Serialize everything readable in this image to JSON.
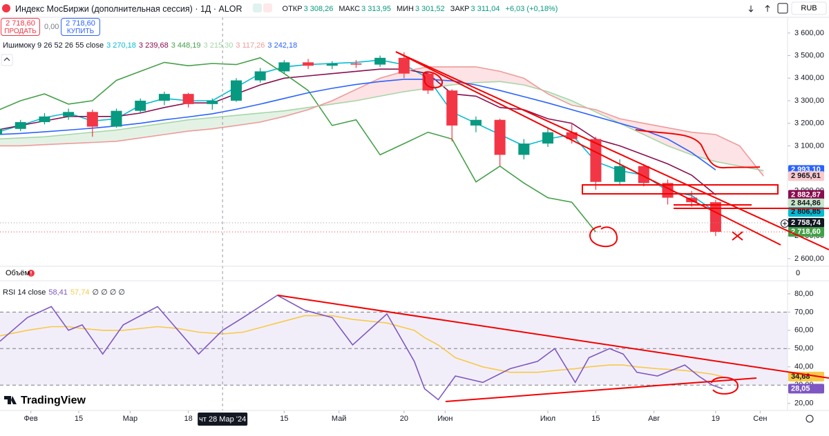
{
  "header": {
    "symbol": "Индекс МосБиржи (дополнительная сессия) · 1Д · ALOR",
    "ohlc": [
      {
        "label": "ОТКР",
        "value": "3 308,26"
      },
      {
        "label": "МАКС",
        "value": "3 313,95"
      },
      {
        "label": "МИН",
        "value": "3 301,52"
      },
      {
        "label": "ЗАКР",
        "value": "3 311,04"
      }
    ],
    "change": "+6,03 (+0,18%)",
    "currency": "RUB",
    "sell": {
      "price": "2 718,60",
      "label": "ПРОДАТЬ"
    },
    "spread": "0,00",
    "buy": {
      "price": "2 718,60",
      "label": "КУПИТЬ"
    },
    "volume": {
      "title": "Объём",
      "axis_label": "0"
    },
    "brand": "TradingView"
  },
  "crosshair": {
    "value": "2024-03-28",
    "label": "чт 28 Мар '24"
  },
  "chart_data": [
    {
      "type": "candlestick",
      "title": "Ишимоку 9 26 52 26 55 close",
      "x": [
        "2024-01-22",
        "2024-01-29",
        "2024-02-05",
        "2024-02-12",
        "2024-02-19",
        "2024-02-26",
        "2024-03-04",
        "2024-03-11",
        "2024-03-18",
        "2024-03-25",
        "2024-04-01",
        "2024-04-08",
        "2024-04-15",
        "2024-04-22",
        "2024-04-29",
        "2024-05-06",
        "2024-05-13",
        "2024-05-20",
        "2024-05-27",
        "2024-06-03",
        "2024-06-10",
        "2024-06-17",
        "2024-06-24",
        "2024-07-01",
        "2024-07-08",
        "2024-07-15",
        "2024-07-22",
        "2024-07-29",
        "2024-08-05",
        "2024-08-12",
        "2024-08-19",
        "2024-08-26",
        "2024-09-02"
      ],
      "open": [
        3150,
        3175,
        3205,
        3230,
        3250,
        3185,
        3255,
        3300,
        3330,
        3285,
        3300,
        3390,
        3430,
        3470,
        3455,
        3465,
        3460,
        3490,
        3420,
        3345,
        3190,
        3215,
        3060,
        3110,
        3160,
        3130,
        2940,
        3010,
        2935,
        2870,
        2850,
        null,
        null
      ],
      "high": [
        3190,
        3215,
        3245,
        3265,
        3260,
        3265,
        3310,
        3340,
        3335,
        3310,
        3400,
        3445,
        3480,
        3485,
        3475,
        3480,
        3500,
        3515,
        3425,
        3350,
        3230,
        3220,
        3130,
        3180,
        3200,
        3140,
        3040,
        3020,
        2950,
        2900,
        2860,
        null,
        null
      ],
      "low": [
        3140,
        3165,
        3195,
        3215,
        3140,
        3180,
        3245,
        3280,
        3270,
        3260,
        3295,
        3380,
        3420,
        3440,
        3440,
        3445,
        3450,
        3400,
        3330,
        3120,
        3160,
        3010,
        3040,
        3095,
        3110,
        2905,
        2930,
        2920,
        2840,
        2830,
        2700,
        null,
        null
      ],
      "close": [
        3175,
        3205,
        3230,
        3250,
        3185,
        3255,
        3300,
        3330,
        3285,
        3300,
        3390,
        3430,
        3470,
        3455,
        3465,
        3460,
        3490,
        3420,
        3345,
        3190,
        3215,
        3060,
        3110,
        3160,
        3130,
        2940,
        3010,
        2935,
        2870,
        2850,
        2718.6,
        null,
        null
      ],
      "up_color": "#089981",
      "down_color": "#f23645",
      "cloud": {
        "up_color": "#43a047",
        "down_color": "#f23645"
      },
      "series": [
        {
          "role": "line",
          "color": "#00bcd4",
          "legend_value": "3 270,18",
          "values": [
            3160,
            3190,
            3225,
            3245,
            3210,
            3220,
            3280,
            3310,
            3300,
            3300,
            3360,
            3420,
            3450,
            3460,
            3465,
            3470,
            3480,
            3460,
            3400,
            3250,
            3200,
            3150,
            3100,
            3130,
            3150,
            3030,
            2990,
            2970,
            2900,
            2880,
            2806.85,
            null,
            null
          ]
        },
        {
          "role": "line",
          "color": "#880e4f",
          "legend_value": "3 239,68",
          "values": [
            3170,
            3190,
            3210,
            3230,
            3230,
            3230,
            3245,
            3270,
            3290,
            3290,
            3330,
            3370,
            3400,
            3410,
            3420,
            3430,
            3440,
            3440,
            3420,
            3330,
            3320,
            3270,
            3260,
            3220,
            3200,
            3130,
            3100,
            3060,
            3020,
            2970,
            2882.87,
            null,
            null
          ]
        },
        {
          "role": "line",
          "color": "#43a047",
          "legend_value": "3 448,19",
          "values": [
            3255,
            3300,
            3330,
            3285,
            3300,
            3390,
            3430,
            3470,
            3455,
            3465,
            3460,
            3490,
            3420,
            3345,
            3190,
            3215,
            3060,
            3110,
            3160,
            3130,
            2940,
            3010,
            2935,
            2870,
            2850,
            2718.6,
            null,
            null,
            null,
            null,
            null,
            null,
            null
          ]
        },
        {
          "role": "senkou_a",
          "color": "#a5d6a7",
          "legend_value": "3 215,30",
          "values": [
            3130,
            3135,
            3140,
            3150,
            3160,
            3170,
            3185,
            3200,
            3215,
            3225,
            3235,
            3245,
            3255,
            3270,
            3285,
            3300,
            3320,
            3340,
            3355,
            3370,
            3380,
            3385,
            3370,
            3340,
            3300,
            3250,
            3200,
            3150,
            3100,
            3060,
            3030,
            3010,
            2990
          ]
        },
        {
          "role": "senkou_b",
          "color": "#ef9a9a",
          "legend_value": "3 117,26",
          "values": [
            3100,
            3100,
            3105,
            3110,
            3115,
            3120,
            3135,
            3150,
            3165,
            3175,
            3190,
            3205,
            3230,
            3260,
            3300,
            3350,
            3400,
            3430,
            3450,
            3450,
            3450,
            3430,
            3400,
            3330,
            3280,
            3260,
            3220,
            3200,
            3180,
            3160,
            3150,
            3100,
            2965.61
          ]
        },
        {
          "role": "line",
          "color": "#2962ff",
          "legend_value": "3 242,18",
          "values": [
            3150,
            3155,
            3162,
            3170,
            3178,
            3188,
            3200,
            3215,
            3228,
            3242,
            3262,
            3285,
            3310,
            3335,
            3355,
            3372,
            3385,
            3395,
            3395,
            3388,
            3370,
            3345,
            3318,
            3290,
            3260,
            3230,
            3200,
            3170,
            3130,
            3070,
            2993,
            null,
            null
          ]
        }
      ],
      "xlim": [
        "2024-01-23",
        "2024-09-09"
      ],
      "ylim": [
        2569,
        3624
      ],
      "yticks": [
        {
          "value": 2600,
          "label": "2 600,00"
        },
        {
          "value": 2700,
          "label": "2 700,00"
        },
        {
          "value": 2800,
          "label": "2 800,00"
        },
        {
          "value": 2900,
          "label": "2 900,00"
        },
        {
          "value": 3000,
          "label": "3 000,00"
        },
        {
          "value": 3100,
          "label": "3 100,00"
        },
        {
          "value": 3200,
          "label": "3 200,00"
        },
        {
          "value": 3300,
          "label": "3 300,00"
        },
        {
          "value": 3400,
          "label": "3 400,00"
        },
        {
          "value": 3500,
          "label": "3 500,00"
        },
        {
          "value": 3600,
          "label": "3 600,00"
        }
      ],
      "price_labels": [
        {
          "value": 2993.1,
          "label": "2 993,10",
          "color": "#2962ff",
          "text_color": "#ffffff"
        },
        {
          "value": 2965.61,
          "label": "2 965,61",
          "color": "#f8c8cc",
          "text_color": "#131722"
        },
        {
          "value": 2882.87,
          "label": "2 882,87",
          "color": "#880e4f",
          "text_color": "#ffffff"
        },
        {
          "value": 2844.86,
          "label": "2 844,86",
          "color": "#c8e6c9",
          "text_color": "#131722"
        },
        {
          "value": 2806.85,
          "label": "2 806,85",
          "color": "#00bcd4",
          "text_color": "#131722"
        },
        {
          "value": 2758.74,
          "label": "2 758,74",
          "color": "#131722",
          "text_color": "#ffffff",
          "line": "#9598a1"
        },
        {
          "value": 2718.6,
          "label": "2 718,60",
          "color": "#43a047",
          "text_color": "#ffffff",
          "line": "#f23645"
        }
      ]
    },
    {
      "type": "line",
      "title": "RSI 14 close",
      "legend_extra": "∅ ∅ ∅ ∅",
      "x": [
        "2024-01-23",
        "2024-01-31",
        "2024-02-07",
        "2024-02-12",
        "2024-02-16",
        "2024-02-22",
        "2024-02-28",
        "2024-03-09",
        "2024-03-15",
        "2024-03-21",
        "2024-03-28",
        "2024-04-03",
        "2024-04-13",
        "2024-04-21",
        "2024-04-29",
        "2024-05-05",
        "2024-05-15",
        "2024-05-23",
        "2024-05-26",
        "2024-05-30",
        "2024-06-04",
        "2024-06-12",
        "2024-06-20",
        "2024-06-28",
        "2024-07-03",
        "2024-07-09",
        "2024-07-13",
        "2024-07-19",
        "2024-07-23",
        "2024-07-27",
        "2024-08-02",
        "2024-08-10",
        "2024-08-14",
        "2024-08-18",
        "2024-08-21"
      ],
      "series": [
        {
          "color": "#7e57c2",
          "legend_value": "58,41",
          "values": [
            54,
            67,
            73,
            60,
            63,
            47,
            63,
            73,
            60,
            47,
            60,
            67,
            79.2,
            71,
            67,
            52,
            69,
            43,
            28,
            22,
            35,
            31.5,
            39,
            43,
            50,
            31.5,
            45,
            50,
            47,
            37,
            35,
            41,
            35,
            30,
            28.05
          ]
        },
        {
          "color": "#f7c948",
          "legend_value": "57,74",
          "values": [
            57,
            60,
            62,
            62,
            61,
            60,
            60,
            62,
            61,
            59,
            58,
            59,
            64,
            68,
            68,
            66,
            64,
            60,
            56,
            52,
            45,
            40,
            37,
            37,
            38,
            39,
            40,
            41,
            41,
            40,
            39,
            38,
            37,
            36,
            34.68
          ]
        }
      ],
      "xlim": [
        "2024-01-23",
        "2024-09-09"
      ],
      "ylim": [
        18,
        86
      ],
      "band": [
        30,
        70
      ],
      "levels": [
        30,
        50,
        70
      ],
      "yticks": [
        {
          "value": 20,
          "label": "20,00"
        },
        {
          "value": 30,
          "label": "30,00"
        },
        {
          "value": 40,
          "label": "40,00"
        },
        {
          "value": 50,
          "label": "50,00"
        },
        {
          "value": 60,
          "label": "60,00"
        },
        {
          "value": 70,
          "label": "70,00"
        },
        {
          "value": 80,
          "label": "80,00"
        }
      ],
      "xticks": [
        {
          "value": "2024-02-01",
          "label": "Фев"
        },
        {
          "value": "2024-02-15",
          "label": "15"
        },
        {
          "value": "2024-03-01",
          "label": "Мар"
        },
        {
          "value": "2024-03-18",
          "label": "18"
        },
        {
          "value": "2024-04-15",
          "label": "15"
        },
        {
          "value": "2024-05-01",
          "label": "Май"
        },
        {
          "value": "2024-05-20",
          "label": "20"
        },
        {
          "value": "2024-06-01",
          "label": "Июн"
        },
        {
          "value": "2024-07-01",
          "label": "Июл"
        },
        {
          "value": "2024-07-15",
          "label": "15"
        },
        {
          "value": "2024-08-01",
          "label": "Авг"
        },
        {
          "value": "2024-08-19",
          "label": "19"
        },
        {
          "value": "2024-09-01",
          "label": "Сен"
        }
      ],
      "price_labels": [
        {
          "value": 34.68,
          "label": "34,68",
          "color": "#f7c948",
          "text_color": "#131722"
        },
        {
          "value": 28.05,
          "label": "28,05",
          "color": "#7e57c2",
          "text_color": "#ffffff"
        }
      ]
    }
  ]
}
